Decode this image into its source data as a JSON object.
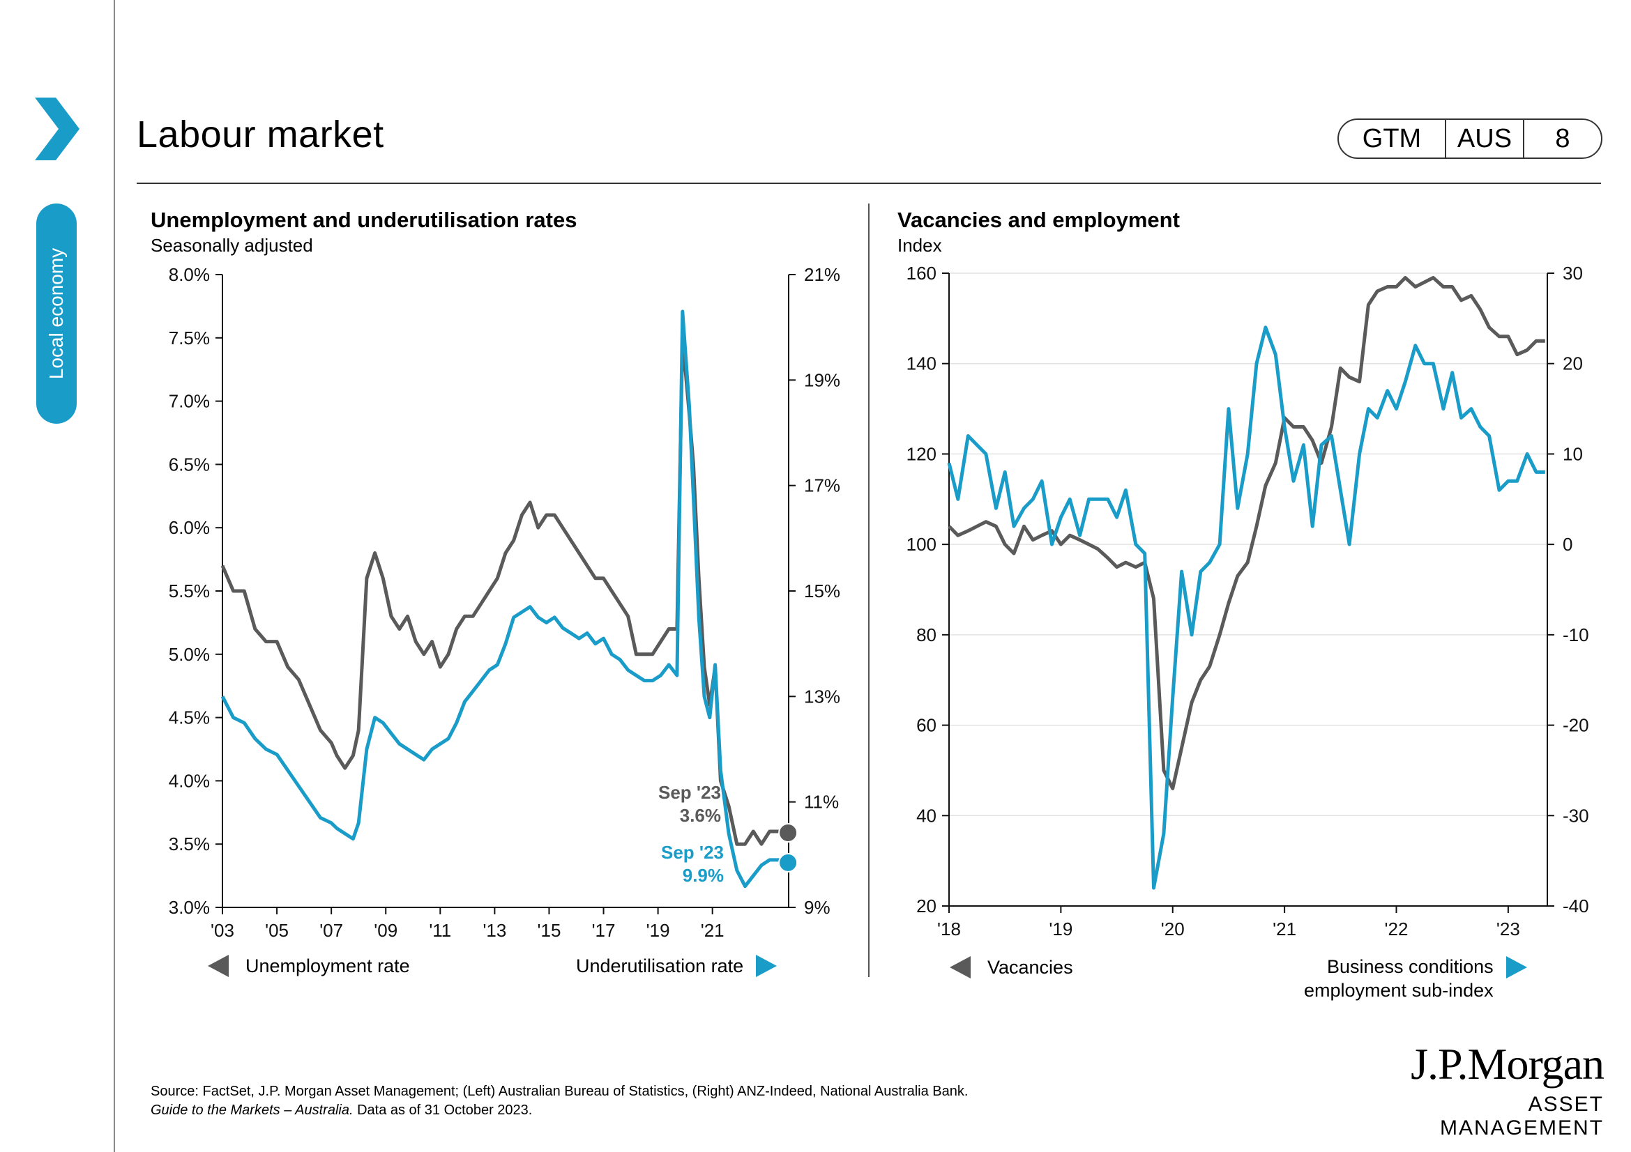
{
  "sidebar": {
    "section_label": "Local economy"
  },
  "header": {
    "title": "Labour market",
    "badge": [
      "GTM",
      "AUS",
      "8"
    ]
  },
  "colors": {
    "accent": "#1a9cc9",
    "grey_series": "#5a5a5a"
  },
  "icons": {
    "section_icon": "chevron-right-icon"
  },
  "legend": {
    "left_a": "Unemployment rate",
    "left_b": "Underutilisation rate",
    "right_a": "Vacancies",
    "right_b_line1": "Business conditions",
    "right_b_line2": "employment sub-index"
  },
  "source": {
    "line1": "Source: FactSet, J.P. Morgan Asset Management; (Left) Australian Bureau of Statistics, (Right) ANZ-Indeed, National Australia Bank.",
    "line2_italic": "Guide to the Markets – Australia.",
    "line2_rest": " Data as of 31 October 2023."
  },
  "logo": {
    "line1": "J.P.Morgan",
    "line2": "ASSET MANAGEMENT"
  },
  "chart_data": [
    {
      "type": "line",
      "title": "Unemployment and underutilisation rates",
      "subtitle": "Seasonally adjusted",
      "x_ticks": [
        "'03",
        "'05",
        "'07",
        "'09",
        "'11",
        "'13",
        "'15",
        "'17",
        "'19",
        "'21"
      ],
      "x_tick_values": [
        2003,
        2005,
        2007,
        2009,
        2011,
        2013,
        2015,
        2017,
        2019,
        2021
      ],
      "xlim": [
        2003,
        2023.8
      ],
      "y_left": {
        "ticks": [
          "8.0%",
          "7.5%",
          "7.0%",
          "6.5%",
          "6.0%",
          "5.5%",
          "5.0%",
          "4.5%",
          "4.0%",
          "3.5%",
          "3.0%"
        ],
        "ylim": [
          3.0,
          8.0
        ]
      },
      "y_right": {
        "ticks": [
          "21%",
          "19%",
          "17%",
          "15%",
          "13%",
          "11%",
          "9%"
        ],
        "ylim": [
          9,
          21
        ]
      },
      "annotations": [
        {
          "label": "Sep '23",
          "value": "3.6%",
          "series": 0
        },
        {
          "label": "Sep '23",
          "value": "9.9%",
          "series": 1
        }
      ],
      "series": [
        {
          "name": "Unemployment rate",
          "axis": "left",
          "color": "#5a5a5a",
          "x": [
            2003,
            2003.4,
            2003.8,
            2004.2,
            2004.6,
            2005,
            2005.4,
            2005.8,
            2006.2,
            2006.6,
            2007,
            2007.2,
            2007.5,
            2007.8,
            2008,
            2008.3,
            2008.6,
            2008.9,
            2009.2,
            2009.5,
            2009.8,
            2010.1,
            2010.4,
            2010.7,
            2011,
            2011.3,
            2011.6,
            2011.9,
            2012.2,
            2012.5,
            2012.8,
            2013.1,
            2013.4,
            2013.7,
            2014,
            2014.3,
            2014.6,
            2014.9,
            2015.2,
            2015.5,
            2015.8,
            2016.1,
            2016.4,
            2016.7,
            2017,
            2017.3,
            2017.6,
            2017.9,
            2018.2,
            2018.5,
            2018.8,
            2019.1,
            2019.4,
            2019.7,
            2019.9,
            2020.15,
            2020.3,
            2020.5,
            2020.7,
            2020.9,
            2021.1,
            2021.3,
            2021.6,
            2021.9,
            2022.2,
            2022.5,
            2022.8,
            2023.1,
            2023.4,
            2023.7
          ],
          "y": [
            5.7,
            5.5,
            5.5,
            5.2,
            5.1,
            5.1,
            4.9,
            4.8,
            4.6,
            4.4,
            4.3,
            4.2,
            4.1,
            4.2,
            4.4,
            5.6,
            5.8,
            5.6,
            5.3,
            5.2,
            5.3,
            5.1,
            5.0,
            5.1,
            4.9,
            5.0,
            5.2,
            5.3,
            5.3,
            5.4,
            5.5,
            5.6,
            5.8,
            5.9,
            6.1,
            6.2,
            6.0,
            6.1,
            6.1,
            6.0,
            5.9,
            5.8,
            5.7,
            5.6,
            5.6,
            5.5,
            5.4,
            5.3,
            5.0,
            5.0,
            5.0,
            5.1,
            5.2,
            5.2,
            7.5,
            6.9,
            6.5,
            5.6,
            4.9,
            4.6,
            4.9,
            4.0,
            3.8,
            3.5,
            3.5,
            3.6,
            3.5,
            3.6,
            3.6,
            3.6
          ]
        },
        {
          "name": "Underutilisation rate",
          "axis": "right",
          "color": "#1a9cc9",
          "x": [
            2003,
            2003.4,
            2003.8,
            2004.2,
            2004.6,
            2005,
            2005.4,
            2005.8,
            2006.2,
            2006.6,
            2007,
            2007.2,
            2007.5,
            2007.8,
            2008,
            2008.3,
            2008.6,
            2008.9,
            2009.2,
            2009.5,
            2009.8,
            2010.1,
            2010.4,
            2010.7,
            2011,
            2011.3,
            2011.6,
            2011.9,
            2012.2,
            2012.5,
            2012.8,
            2013.1,
            2013.4,
            2013.7,
            2014,
            2014.3,
            2014.6,
            2014.9,
            2015.2,
            2015.5,
            2015.8,
            2016.1,
            2016.4,
            2016.7,
            2017,
            2017.3,
            2017.6,
            2017.9,
            2018.2,
            2018.5,
            2018.8,
            2019.1,
            2019.4,
            2019.7,
            2019.9,
            2020.15,
            2020.3,
            2020.5,
            2020.7,
            2020.9,
            2021.1,
            2021.3,
            2021.6,
            2021.9,
            2022.2,
            2022.5,
            2022.8,
            2023.1,
            2023.4,
            2023.7
          ],
          "y": [
            13.0,
            12.6,
            12.5,
            12.2,
            12.0,
            11.9,
            11.6,
            11.3,
            11.0,
            10.7,
            10.6,
            10.5,
            10.4,
            10.3,
            10.6,
            12.0,
            12.6,
            12.5,
            12.3,
            12.1,
            12.0,
            11.9,
            11.8,
            12.0,
            12.1,
            12.2,
            12.5,
            12.9,
            13.1,
            13.3,
            13.5,
            13.6,
            14.0,
            14.5,
            14.6,
            14.7,
            14.5,
            14.4,
            14.5,
            14.3,
            14.2,
            14.1,
            14.2,
            14.0,
            14.1,
            13.8,
            13.7,
            13.5,
            13.4,
            13.3,
            13.3,
            13.4,
            13.6,
            13.4,
            20.3,
            18.5,
            16.8,
            14.5,
            13.0,
            12.6,
            13.6,
            11.6,
            10.4,
            9.7,
            9.4,
            9.6,
            9.8,
            9.9,
            9.9,
            9.9
          ]
        }
      ]
    },
    {
      "type": "line",
      "title": "Vacancies and employment",
      "subtitle": "Index",
      "x_ticks": [
        "'18",
        "'19",
        "'20",
        "'21",
        "'22",
        "'23"
      ],
      "x_tick_values": [
        2018,
        2019,
        2020,
        2021,
        2022,
        2023
      ],
      "xlim": [
        2018,
        2023.35
      ],
      "y_left": {
        "ticks": [
          "160",
          "140",
          "120",
          "100",
          "80",
          "60",
          "40",
          "20"
        ],
        "ylim": [
          20,
          160
        ]
      },
      "y_right": {
        "ticks": [
          "30",
          "20",
          "10",
          "0",
          "-10",
          "-20",
          "-30",
          "-40"
        ],
        "ylim": [
          -40,
          30
        ]
      },
      "series": [
        {
          "name": "Vacancies",
          "axis": "left",
          "color": "#5a5a5a",
          "x": [
            2018,
            2018.08,
            2018.17,
            2018.25,
            2018.33,
            2018.42,
            2018.5,
            2018.58,
            2018.67,
            2018.75,
            2018.83,
            2018.92,
            2019,
            2019.08,
            2019.17,
            2019.25,
            2019.33,
            2019.42,
            2019.5,
            2019.58,
            2019.67,
            2019.75,
            2019.83,
            2019.92,
            2020,
            2020.08,
            2020.17,
            2020.25,
            2020.33,
            2020.42,
            2020.5,
            2020.58,
            2020.67,
            2020.75,
            2020.83,
            2020.92,
            2021,
            2021.08,
            2021.17,
            2021.25,
            2021.33,
            2021.42,
            2021.5,
            2021.58,
            2021.67,
            2021.75,
            2021.83,
            2021.92,
            2022,
            2022.08,
            2022.17,
            2022.25,
            2022.33,
            2022.42,
            2022.5,
            2022.58,
            2022.67,
            2022.75,
            2022.83,
            2022.92,
            2023,
            2023.08,
            2023.17,
            2023.25,
            2023.33
          ],
          "y": [
            104,
            102,
            103,
            104,
            105,
            104,
            100,
            98,
            104,
            101,
            102,
            103,
            100,
            102,
            101,
            100,
            99,
            97,
            95,
            96,
            95,
            96,
            88,
            50,
            46,
            55,
            65,
            70,
            73,
            80,
            87,
            93,
            96,
            104,
            113,
            118,
            128,
            126,
            126,
            123,
            118,
            126,
            139,
            137,
            136,
            153,
            156,
            157,
            157,
            159,
            157,
            158,
            159,
            157,
            157,
            154,
            155,
            152,
            148,
            146,
            146,
            142,
            143,
            145,
            145
          ]
        },
        {
          "name": "Business conditions employment sub-index",
          "axis": "right",
          "color": "#1a9cc9",
          "x": [
            2018,
            2018.08,
            2018.17,
            2018.25,
            2018.33,
            2018.42,
            2018.5,
            2018.58,
            2018.67,
            2018.75,
            2018.83,
            2018.92,
            2019,
            2019.08,
            2019.17,
            2019.25,
            2019.33,
            2019.42,
            2019.5,
            2019.58,
            2019.67,
            2019.75,
            2019.83,
            2019.92,
            2020,
            2020.08,
            2020.17,
            2020.25,
            2020.33,
            2020.42,
            2020.5,
            2020.58,
            2020.67,
            2020.75,
            2020.83,
            2020.92,
            2021,
            2021.08,
            2021.17,
            2021.25,
            2021.33,
            2021.42,
            2021.5,
            2021.58,
            2021.67,
            2021.75,
            2021.83,
            2021.92,
            2022,
            2022.08,
            2022.17,
            2022.25,
            2022.33,
            2022.42,
            2022.5,
            2022.58,
            2022.67,
            2022.75,
            2022.83,
            2022.92,
            2023,
            2023.08,
            2023.17,
            2023.25,
            2023.33
          ],
          "y": [
            9,
            5,
            12,
            11,
            10,
            4,
            8,
            2,
            4,
            5,
            7,
            0,
            3,
            5,
            1,
            5,
            5,
            5,
            3,
            6,
            0,
            -1,
            -38,
            -32,
            -17,
            -3,
            -10,
            -3,
            -2,
            0,
            15,
            4,
            10,
            20,
            24,
            21,
            13,
            7,
            11,
            2,
            11,
            12,
            6,
            0,
            10,
            15,
            14,
            17,
            15,
            18,
            22,
            20,
            20,
            15,
            19,
            14,
            15,
            13,
            12,
            6,
            7,
            7,
            10,
            8,
            8
          ]
        }
      ]
    }
  ]
}
